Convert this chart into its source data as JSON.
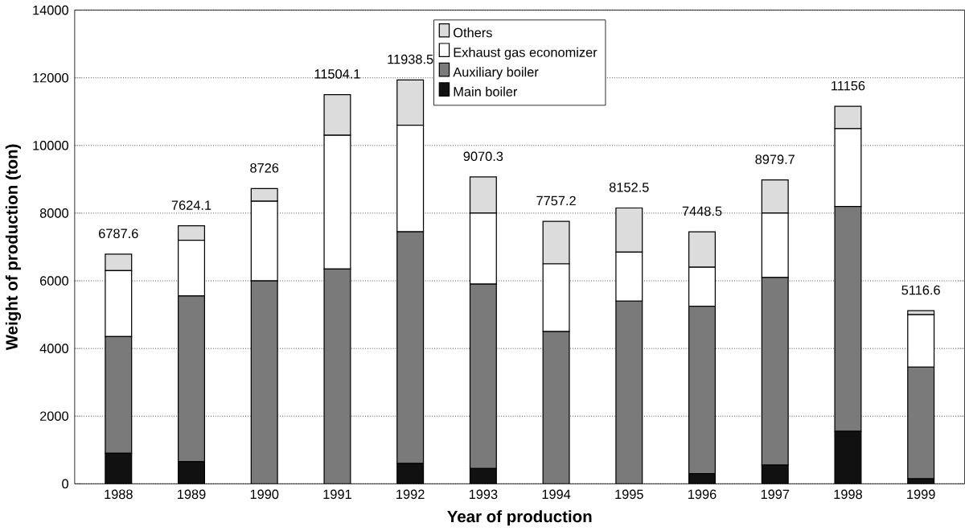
{
  "chart_data": {
    "type": "bar",
    "stacked": true,
    "xlabel": "Year of production",
    "ylabel": "Weight of production (ton)",
    "categories": [
      "1988",
      "1989",
      "1990",
      "1991",
      "1992",
      "1993",
      "1994",
      "1995",
      "1996",
      "1997",
      "1998",
      "1999"
    ],
    "series": [
      {
        "name": "Main boiler",
        "color": "#111111",
        "values": [
          900,
          650,
          0,
          0,
          600,
          450,
          0,
          0,
          300,
          550,
          1550,
          150
        ]
      },
      {
        "name": "Auxiliary boiler",
        "color": "#7a7a7a",
        "values": [
          3450,
          4900,
          6000,
          6350,
          6850,
          5450,
          4500,
          5400,
          4950,
          5550,
          6650,
          3300
        ]
      },
      {
        "name": "Exhaust gas economizer",
        "color": "#ffffff",
        "values": [
          1950,
          1650,
          2350,
          3950,
          3150,
          2100,
          2000,
          1450,
          1150,
          1900,
          2300,
          1550
        ]
      },
      {
        "name": "Others",
        "color": "#dcdcdc",
        "values": [
          487.6,
          424.1,
          376,
          1204.1,
          1338.5,
          1070.3,
          1257.2,
          1302.5,
          1048.5,
          979.7,
          656,
          116.6
        ]
      }
    ],
    "totals": [
      "6787.6",
      "7624.1",
      "8726",
      "11504.1",
      "11938.5",
      "9070.3",
      "7757.2",
      "8152.5",
      "7448.5",
      "8979.7",
      "11156",
      "5116.6"
    ],
    "ylim": [
      0,
      14000
    ],
    "yticks": [
      0,
      2000,
      4000,
      6000,
      8000,
      10000,
      12000,
      14000
    ],
    "grid": "y",
    "legend": "top"
  }
}
